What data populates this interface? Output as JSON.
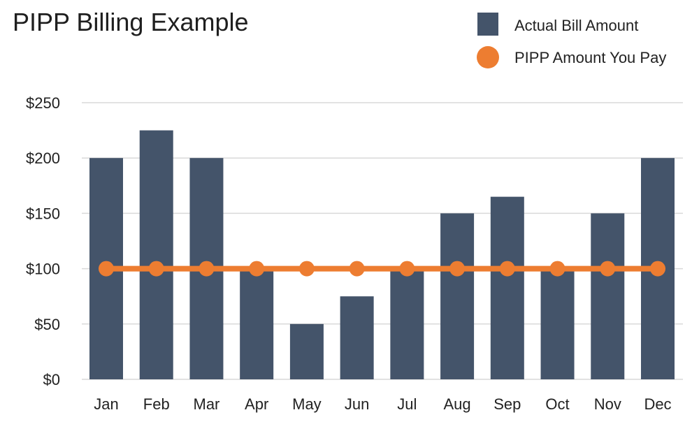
{
  "chart_data": {
    "type": "bar",
    "title": "PIPP Billing Example",
    "xlabel": "",
    "ylabel": "",
    "categories": [
      "Jan",
      "Feb",
      "Mar",
      "Apr",
      "May",
      "Jun",
      "Jul",
      "Aug",
      "Sep",
      "Oct",
      "Nov",
      "Dec"
    ],
    "ylim": [
      0,
      250
    ],
    "yticks": [
      0,
      50,
      100,
      150,
      200,
      250
    ],
    "ytick_labels": [
      "$0",
      "$50",
      "$100",
      "$150",
      "$200",
      "$250"
    ],
    "grid": true,
    "legend_position": "top-right",
    "series": [
      {
        "name": "Actual Bill Amount",
        "type": "bar",
        "color": "#44546a",
        "values": [
          200,
          225,
          200,
          100,
          50,
          75,
          100,
          150,
          165,
          100,
          150,
          200
        ]
      },
      {
        "name": "PIPP Amount You Pay",
        "type": "line",
        "color": "#ed7d31",
        "values": [
          100,
          100,
          100,
          100,
          100,
          100,
          100,
          100,
          100,
          100,
          100,
          100
        ]
      }
    ]
  }
}
